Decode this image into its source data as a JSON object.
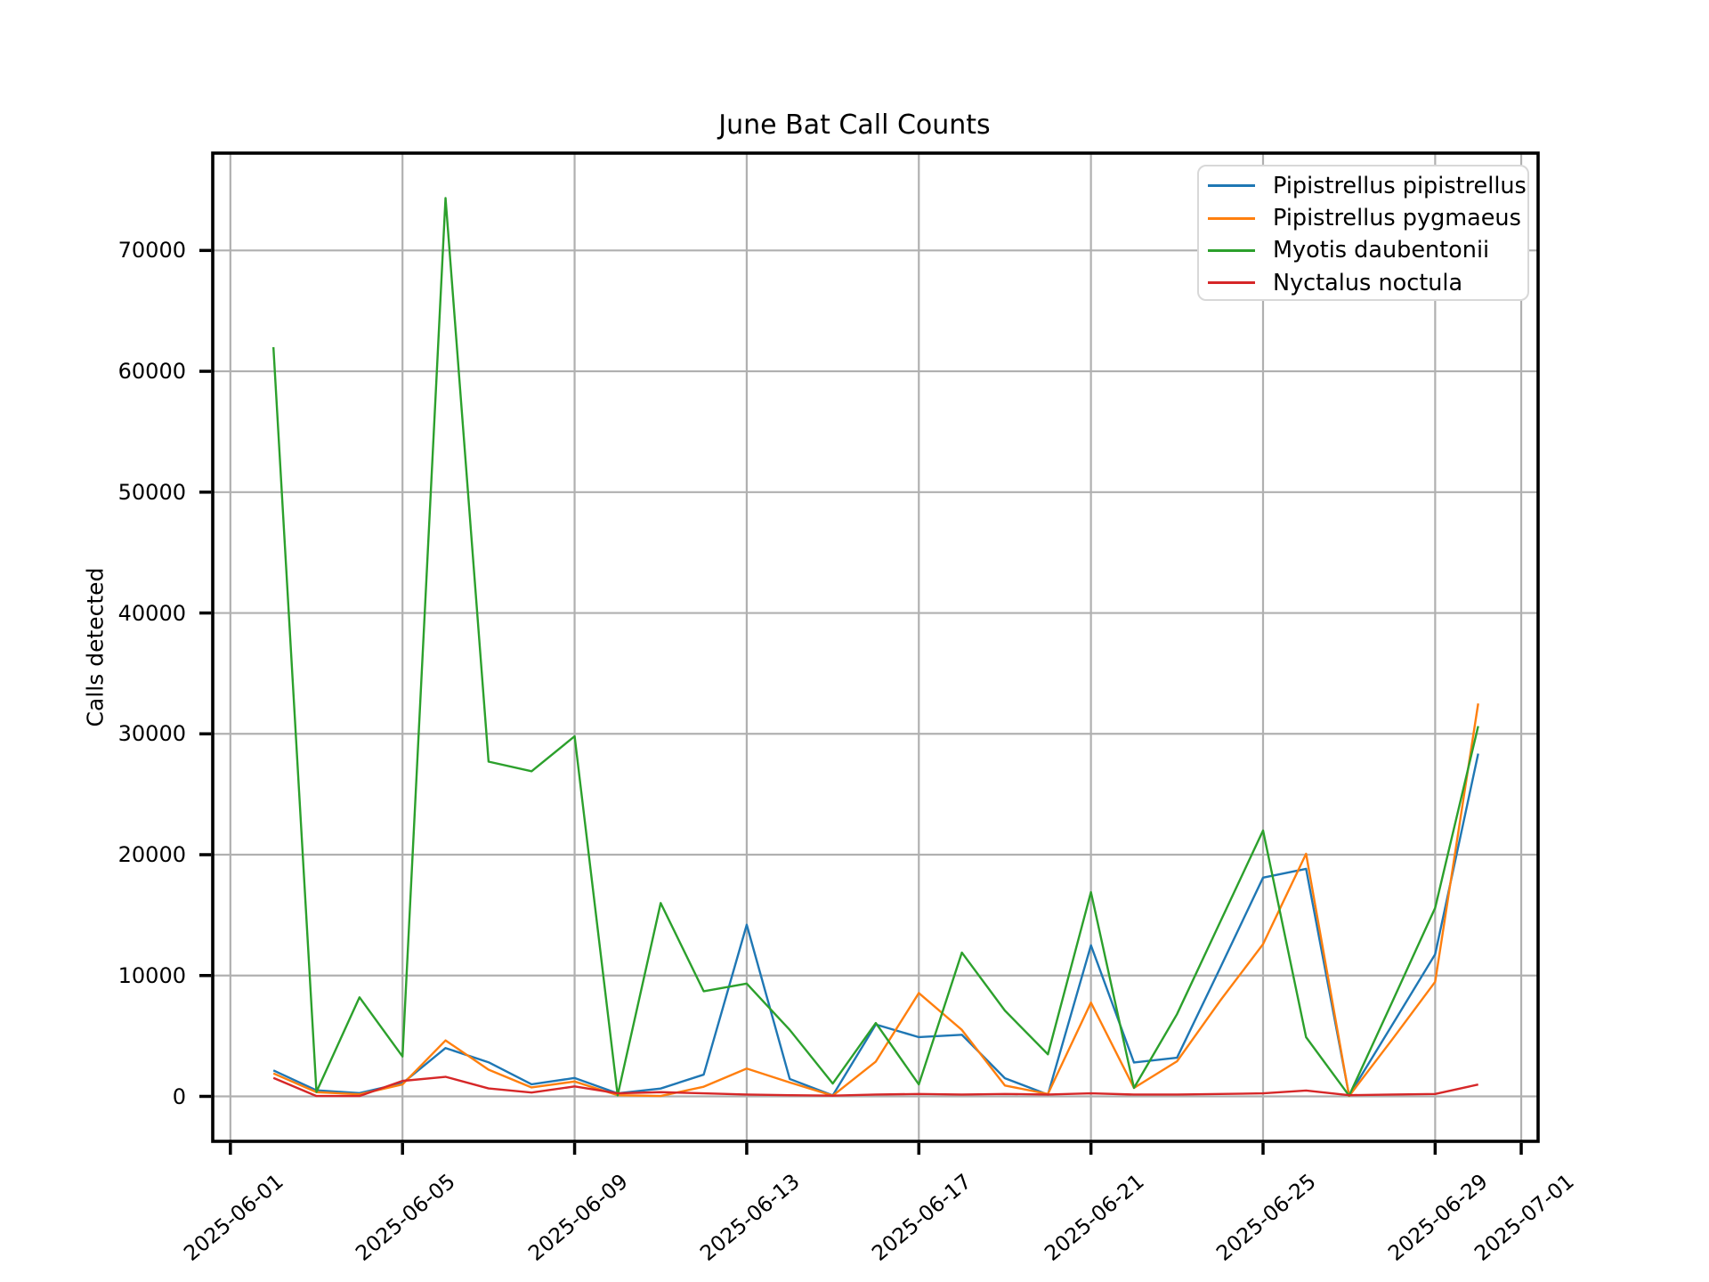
{
  "chart_data": {
    "type": "line",
    "title": "June Bat Call Counts",
    "ylabel": "Calls detected",
    "xlabel": "",
    "grid": true,
    "legend_position": "upper right",
    "x_dates": [
      "2025-06-02",
      "2025-06-03",
      "2025-06-04",
      "2025-06-05",
      "2025-06-06",
      "2025-06-07",
      "2025-06-08",
      "2025-06-09",
      "2025-06-10",
      "2025-06-11",
      "2025-06-12",
      "2025-06-13",
      "2025-06-14",
      "2025-06-15",
      "2025-06-16",
      "2025-06-17",
      "2025-06-18",
      "2025-06-19",
      "2025-06-20",
      "2025-06-21",
      "2025-06-22",
      "2025-06-23",
      "2025-06-24",
      "2025-06-25",
      "2025-06-26",
      "2025-06-27",
      "2025-06-28",
      "2025-06-29",
      "2025-06-30"
    ],
    "x_tick_labels": [
      "2025-06-01",
      "2025-06-05",
      "2025-06-09",
      "2025-06-13",
      "2025-06-17",
      "2025-06-21",
      "2025-06-25",
      "2025-06-29",
      "2025-07-01"
    ],
    "x_tick_days": [
      1,
      5,
      9,
      13,
      17,
      21,
      25,
      29,
      31
    ],
    "y_ticks": [
      0,
      10000,
      20000,
      30000,
      40000,
      50000,
      60000,
      70000
    ],
    "ylim": [
      -4000,
      78260
    ],
    "series": [
      {
        "name": "Pipistrellus pipistrellus",
        "color": "#1f77b4",
        "values": [
          2150,
          500,
          270,
          1090,
          4000,
          2820,
          1000,
          1520,
          250,
          650,
          1800,
          14200,
          1440,
          80,
          5950,
          4900,
          5100,
          1500,
          150,
          12500,
          2800,
          3200,
          10600,
          18100,
          18830,
          80,
          5900,
          11760,
          28360
        ]
      },
      {
        "name": "Pipistrellus pygmaeus",
        "color": "#ff7f0e",
        "values": [
          1900,
          350,
          170,
          990,
          4630,
          2210,
          740,
          1230,
          100,
          30,
          800,
          2300,
          1150,
          60,
          2880,
          8550,
          5500,
          900,
          200,
          7760,
          700,
          2900,
          7900,
          12600,
          20075,
          30,
          4700,
          9480,
          32510
        ]
      },
      {
        "name": "Myotis daubentonii",
        "color": "#2ca02c",
        "values": [
          62000,
          370,
          8200,
          3300,
          74340,
          27700,
          26900,
          29800,
          80,
          16000,
          8700,
          9330,
          5500,
          1060,
          6070,
          990,
          11900,
          7100,
          3480,
          16900,
          700,
          6800,
          14400,
          22000,
          4900,
          60,
          7800,
          15600,
          30640
        ]
      },
      {
        "name": "Nyctalus noctula",
        "color": "#d62728",
        "values": [
          1530,
          30,
          30,
          1280,
          1620,
          660,
          320,
          820,
          250,
          350,
          250,
          150,
          100,
          60,
          150,
          200,
          150,
          200,
          150,
          250,
          150,
          150,
          200,
          250,
          480,
          100,
          150,
          200,
          980
        ]
      }
    ]
  }
}
